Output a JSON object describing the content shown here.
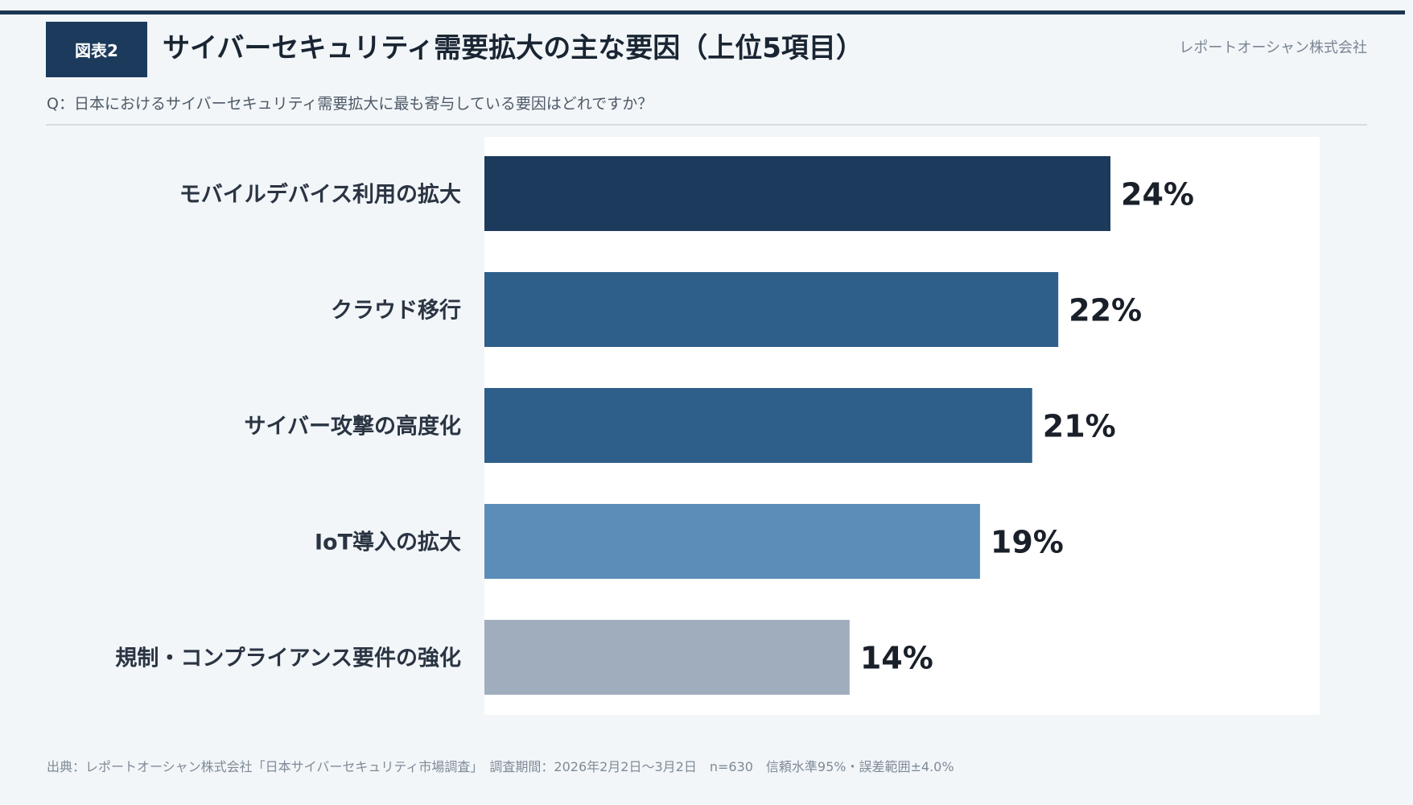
{
  "header": {
    "figure_label": "図表2",
    "title": "サイバーセキュリティ需要拡大の主な要因（上位5項目）",
    "company": "レポートオーシャン株式会社"
  },
  "question": "Q：日本におけるサイバーセキュリティ需要拡大に最も寄与している要因はどれですか？",
  "footer": "出典：レポートオーシャン株式会社「日本サイバーセキュリティ市場調査」　調査期間：2026年2月2日〜3月2日　n=630　信頼水準95%・誤差範囲±4.0%",
  "colors": {
    "accent": "#1b3a5c",
    "bar_colors": [
      "#1b3a5c",
      "#2e5f8a",
      "#2e5f8a",
      "#5b8db8",
      "#a0adbd"
    ]
  },
  "chart_data": {
    "type": "bar",
    "orientation": "horizontal",
    "categories": [
      "モバイルデバイス利用の拡大",
      "クラウド移行",
      "サイバー攻撃の高度化",
      "IoT導入の拡大",
      "規制・コンプライアンス要件の強化"
    ],
    "values": [
      24,
      22,
      21,
      19,
      14
    ],
    "value_labels": [
      "24%",
      "22%",
      "21%",
      "19%",
      "14%"
    ],
    "unit": "%",
    "xlim": [
      0,
      32
    ],
    "grid": false,
    "legend": "none"
  }
}
